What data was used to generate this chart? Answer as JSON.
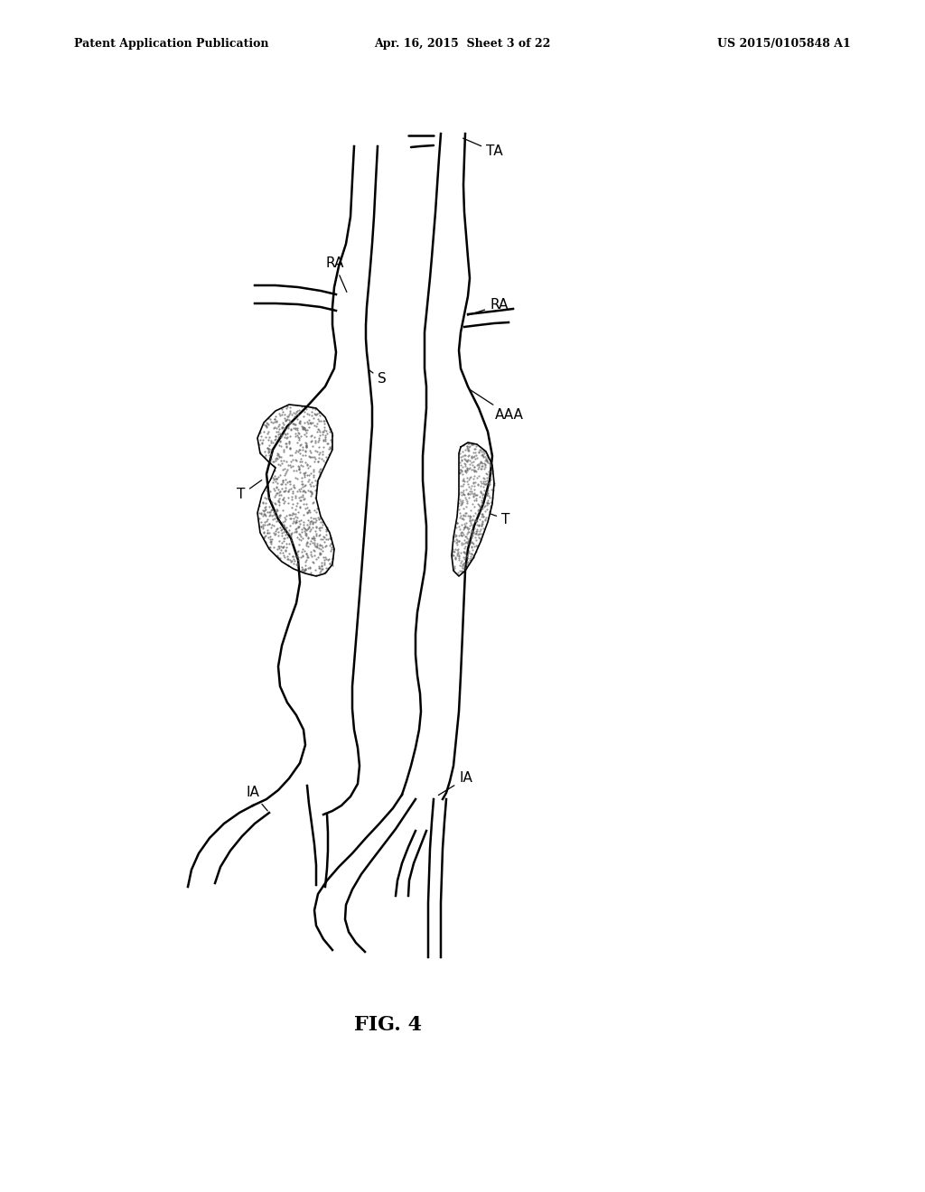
{
  "bg_color": "#ffffff",
  "line_color": "#000000",
  "header_left": "Patent Application Publication",
  "header_center": "Apr. 16, 2015  Sheet 3 of 22",
  "header_right": "US 2015/0105848 A1",
  "figure_label": "FIG. 4",
  "lw": 1.8,
  "label_fontsize": 11
}
